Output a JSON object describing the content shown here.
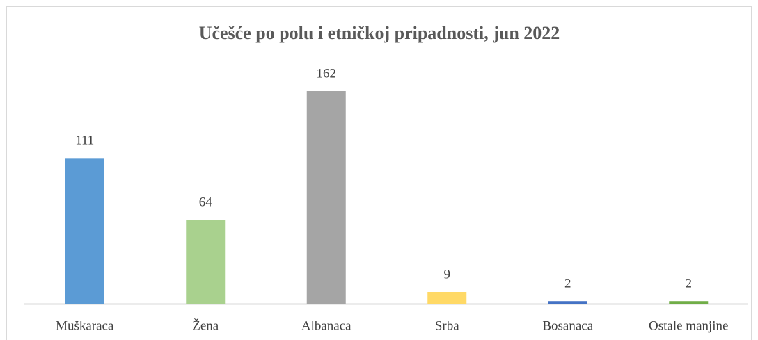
{
  "chart_data": {
    "type": "bar",
    "title": "Učešće po polu i etničkoj pripadnosti,  jun 2022",
    "categories": [
      "Muškaraca",
      "Žena",
      "Albanaca",
      "Srba",
      "Bosanaca",
      "Ostale manjine"
    ],
    "values": [
      111,
      64,
      162,
      9,
      2,
      2
    ],
    "colors": [
      "#5b9bd5",
      "#a9d18e",
      "#a5a5a5",
      "#ffd966",
      "#4472c4",
      "#70ad47"
    ],
    "ylim": [
      0,
      180
    ]
  }
}
